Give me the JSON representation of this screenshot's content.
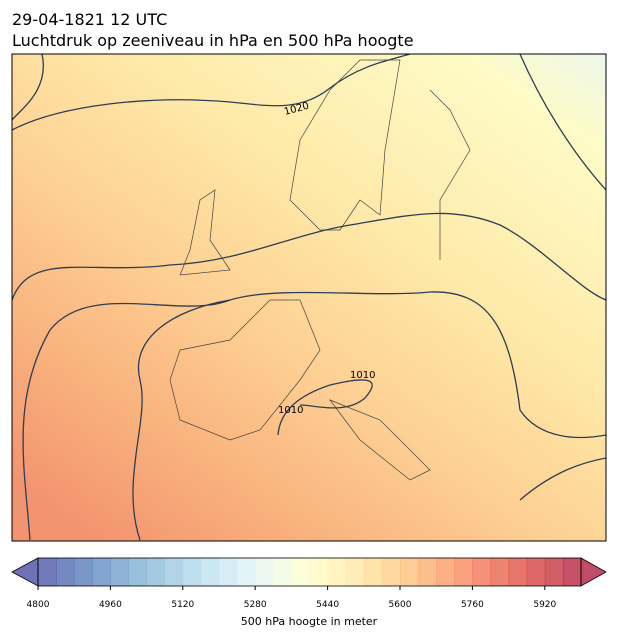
{
  "header": {
    "title": "29-04-1821 12 UTC",
    "subtitle": "Luchtdruk op zeeniveau in hPa en 500 hPa hoogte"
  },
  "map": {
    "contour_labels": [
      "1020",
      "1010",
      "1010"
    ]
  },
  "colorbar": {
    "lim": [
      4800,
      6000
    ],
    "ticks": [
      4800,
      4960,
      5120,
      5280,
      5440,
      5600,
      5760,
      5920
    ],
    "label": "500 hPa hoogte in meter"
  }
}
